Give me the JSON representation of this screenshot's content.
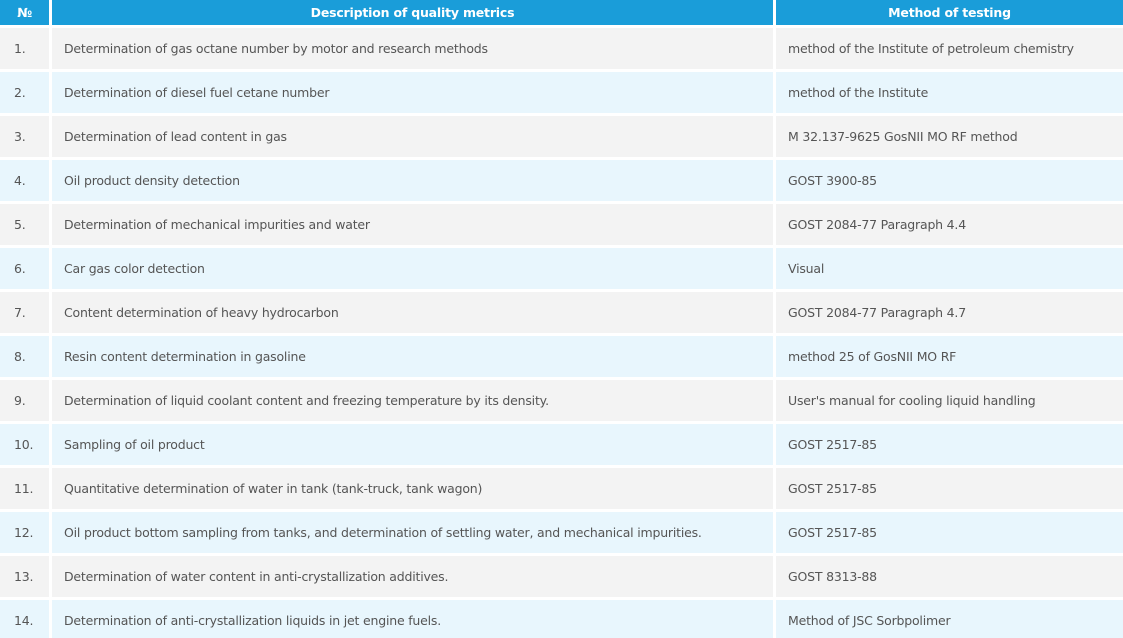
{
  "table": {
    "headers": {
      "number": "№",
      "description": "Description of quality metrics",
      "method": "Method of testing"
    },
    "rows": [
      {
        "num": "1.",
        "description": "Determination of gas octane number by motor and research methods",
        "method": "method of the Institute of petroleum chemistry"
      },
      {
        "num": "2.",
        "description": "Determination of diesel fuel cetane number",
        "method": "method of the Institute"
      },
      {
        "num": "3.",
        "description": "Determination of lead content in gas",
        "method": "M 32.137-9625 GosNII MO RF method"
      },
      {
        "num": "4.",
        "description": "Oil product density detection",
        "method": "GOST 3900-85"
      },
      {
        "num": "5.",
        "description": "Determination of mechanical impurities and water",
        "method": "GOST 2084-77 Paragraph 4.4"
      },
      {
        "num": "6.",
        "description": "Car gas color detection",
        "method": "Visual"
      },
      {
        "num": "7.",
        "description": "Content determination of heavy hydrocarbon",
        "method": "GOST 2084-77 Paragraph 4.7"
      },
      {
        "num": "8.",
        "description": "Resin content determination in gasoline",
        "method": "method 25 of GosNII MO RF"
      },
      {
        "num": "9.",
        "description": "Determination of liquid coolant content and freezing temperature by its density.",
        "method": "User's manual for cooling liquid handling"
      },
      {
        "num": "10.",
        "description": "Sampling of oil product",
        "method": "GOST 2517-85"
      },
      {
        "num": "11.",
        "description": "Quantitative determination of water in tank (tank-truck, tank wagon)",
        "method": "GOST 2517-85"
      },
      {
        "num": "12.",
        "description": "Oil product bottom sampling from tanks, and determination of settling water, and mechanical impurities.",
        "method": "GOST 2517-85"
      },
      {
        "num": "13.",
        "description": "Determination of water content in anti-crystallization additives.",
        "method": "GOST 8313-88"
      },
      {
        "num": "14.",
        "description": "Determination of anti-crystallization liquids in jet engine fuels.",
        "method": "Method of JSC Sorbpolimer"
      }
    ]
  }
}
